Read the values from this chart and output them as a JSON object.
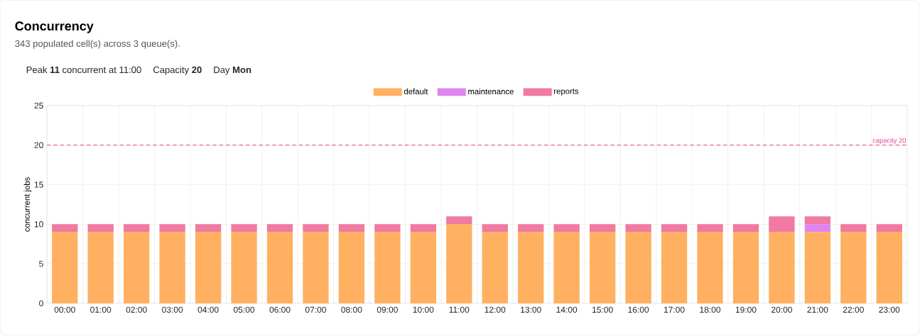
{
  "chart_data": {
    "type": "bar",
    "title": "Concurrency",
    "subtitle": "343 populated cell(s) across 3 queue(s).",
    "annotations": [
      "Peak **11** concurrent at 11:00",
      "Capacity **20**",
      "Day **Mon**"
    ],
    "ylabel": "concurrent jobs",
    "categories": [
      "00:00",
      "01:00",
      "02:00",
      "03:00",
      "04:00",
      "05:00",
      "06:00",
      "07:00",
      "08:00",
      "09:00",
      "10:00",
      "11:00",
      "12:00",
      "13:00",
      "14:00",
      "15:00",
      "16:00",
      "17:00",
      "18:00",
      "19:00",
      "20:00",
      "21:00",
      "22:00",
      "23:00"
    ],
    "stacked": true,
    "series": [
      {
        "name": "default",
        "color": "#ffb060",
        "values": [
          9,
          9,
          9,
          9,
          9,
          9,
          9,
          9,
          9,
          9,
          9,
          10,
          9,
          9,
          9,
          9,
          9,
          9,
          9,
          9,
          9,
          9,
          9,
          9
        ]
      },
      {
        "name": "maintenance",
        "color": "#e084f0",
        "values": [
          0,
          0,
          0,
          0,
          0,
          0,
          0,
          0,
          0,
          0,
          0,
          0,
          0,
          0,
          0,
          0,
          0,
          0,
          0,
          0,
          0,
          1,
          0,
          0
        ]
      },
      {
        "name": "reports",
        "color": "#f07aa0",
        "values": [
          1,
          1,
          1,
          1,
          1,
          1,
          1,
          1,
          1,
          1,
          1,
          1,
          1,
          1,
          1,
          1,
          1,
          1,
          1,
          1,
          2,
          1,
          1,
          1
        ]
      }
    ],
    "ylim": [
      0,
      25
    ],
    "yticks": [
      0,
      5,
      10,
      15,
      20,
      25
    ],
    "ref_lines": [
      {
        "axis": "y",
        "value": 20,
        "label": "capacity 20",
        "color": "#e83e8c",
        "line_style": "dashed"
      }
    ],
    "grid": true,
    "legend": "top"
  }
}
